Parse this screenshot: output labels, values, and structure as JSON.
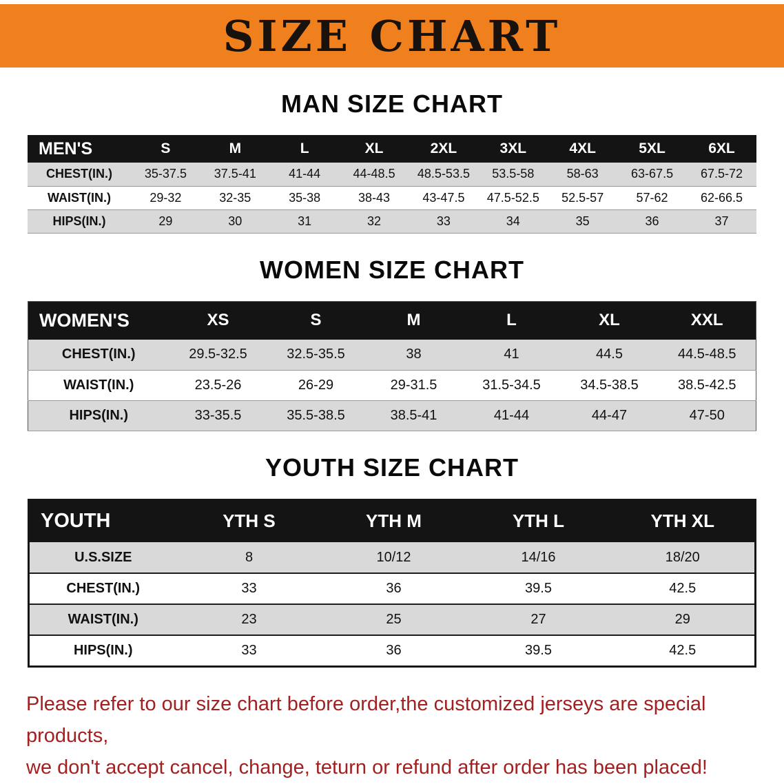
{
  "banner": {
    "title": "SIZE CHART"
  },
  "sections": {
    "men": {
      "title": "MAN SIZE CHART",
      "table": {
        "label": "MEN'S",
        "sizes": [
          "S",
          "M",
          "L",
          "XL",
          "2XL",
          "3XL",
          "4XL",
          "5XL",
          "6XL"
        ],
        "rows": [
          {
            "label": "CHEST(IN.)",
            "values": [
              "35-37.5",
              "37.5-41",
              "41-44",
              "44-48.5",
              "48.5-53.5",
              "53.5-58",
              "58-63",
              "63-67.5",
              "67.5-72"
            ]
          },
          {
            "label": "WAIST(IN.)",
            "values": [
              "29-32",
              "32-35",
              "35-38",
              "38-43",
              "43-47.5",
              "47.5-52.5",
              "52.5-57",
              "57-62",
              "62-66.5"
            ]
          },
          {
            "label": "HIPS(IN.)",
            "values": [
              "29",
              "30",
              "31",
              "32",
              "33",
              "34",
              "35",
              "36",
              "37"
            ]
          }
        ]
      }
    },
    "women": {
      "title": "WOMEN SIZE CHART",
      "table": {
        "label": "WOMEN'S",
        "sizes": [
          "XS",
          "S",
          "M",
          "L",
          "XL",
          "XXL"
        ],
        "rows": [
          {
            "label": "CHEST(IN.)",
            "values": [
              "29.5-32.5",
              "32.5-35.5",
              "38",
              "41",
              "44.5",
              "44.5-48.5"
            ]
          },
          {
            "label": "WAIST(IN.)",
            "values": [
              "23.5-26",
              "26-29",
              "29-31.5",
              "31.5-34.5",
              "34.5-38.5",
              "38.5-42.5"
            ]
          },
          {
            "label": "HIPS(IN.)",
            "values": [
              "33-35.5",
              "35.5-38.5",
              "38.5-41",
              "41-44",
              "44-47",
              "47-50"
            ]
          }
        ]
      }
    },
    "youth": {
      "title": "YOUTH SIZE CHART",
      "table": {
        "label": "YOUTH",
        "sizes": [
          "YTH S",
          "YTH M",
          "YTH L",
          "YTH XL"
        ],
        "rows": [
          {
            "label": "U.S.SIZE",
            "values": [
              "8",
              "10/12",
              "14/16",
              "18/20"
            ]
          },
          {
            "label": "CHEST(IN.)",
            "values": [
              "33",
              "36",
              "39.5",
              "42.5"
            ]
          },
          {
            "label": "WAIST(IN.)",
            "values": [
              "23",
              "25",
              "27",
              "29"
            ]
          },
          {
            "label": "HIPS(IN.)",
            "values": [
              "33",
              "36",
              "39.5",
              "42.5"
            ]
          }
        ]
      }
    }
  },
  "disclaimer": {
    "line1": "Please refer to our size chart before order,the customized jerseys are special products,",
    "line2": "we don't accept cancel, change, teturn or refund after order has been placed!"
  },
  "colors": {
    "banner": "#F0801E",
    "header": "#141414",
    "rowshade": "#D9D9D9",
    "red": "#A32020"
  }
}
